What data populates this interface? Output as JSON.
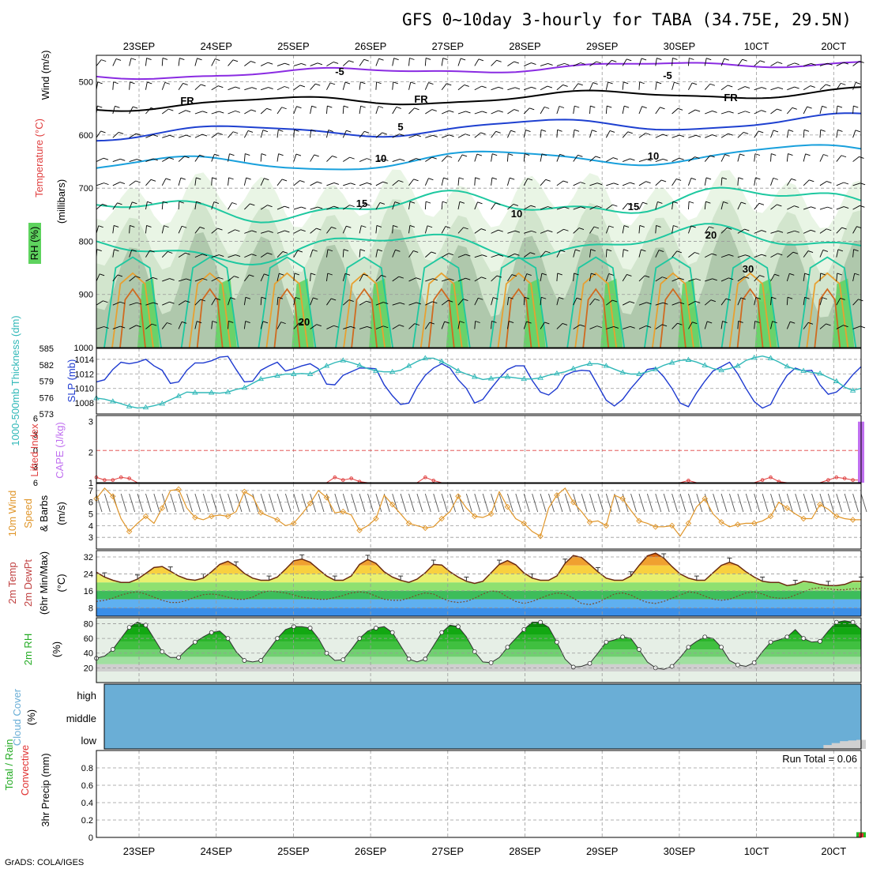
{
  "title": "GFS 0~10day 3-hourly for TABA (34.75E, 29.5N)",
  "credit": "GrADS: COLA/IGES",
  "date_labels": [
    "23SEP",
    "24SEP",
    "25SEP",
    "26SEP",
    "27SEP",
    "28SEP",
    "29SEP",
    "30SEP",
    "1OCT",
    "2OCT"
  ],
  "date_labels_top": [
    "23SEP",
    "24SEP",
    "25SEP",
    "26SEP",
    "27SEP",
    "28SEP",
    "29SEP",
    "30SEP",
    "10CT",
    "20CT"
  ],
  "date_labels_bottom": [
    "23SEP",
    "24SEP",
    "25SEP",
    "26SEP",
    "27SEP",
    "28SEP",
    "29SEP",
    "30SEP",
    "10CT",
    "20CT"
  ],
  "colors": {
    "rh_fill": "#5ed35e",
    "temp_purple": "#8a2be2",
    "temp_blue": "#1e40d0",
    "temp_cyan": "#19a0dc",
    "temp_teal": "#1ec8a0",
    "temp_orange": "#e8a030",
    "slp": "#1e3ad0",
    "thickness": "#30b8b8",
    "li": "#e04040",
    "cape": "#c070f0",
    "wind10": "#e0962a",
    "cloud": "#6aaed6",
    "precip_total": "#22bb22",
    "precip_conv": "#e03030"
  },
  "chart_data": [
    {
      "type": "line",
      "name": "upper-air",
      "ylabel_parts": [
        "Wind (m/s)",
        "Temperature (°C)",
        "RH (%)",
        "(millibars)"
      ],
      "yticks": [
        500,
        600,
        700,
        800,
        900,
        1000
      ],
      "ylim": [
        1000,
        450
      ],
      "contour_labels": [
        "-5",
        "-5",
        "FR",
        "FR",
        "FR",
        "5",
        "10",
        "10",
        "15",
        "15",
        "20",
        "20",
        "10",
        "30"
      ],
      "grid": true
    },
    {
      "type": "line",
      "name": "slp-thickness",
      "ylabel_left": "1000-500mb Thickness (dm)",
      "ylabel_right": "SLP (mb)",
      "left_ticks": [
        573,
        576,
        579,
        582,
        585
      ],
      "right_ticks": [
        1008,
        1010,
        1012,
        1014
      ],
      "left_range": [
        573,
        585
      ],
      "right_range": [
        1006.5,
        1015.5
      ],
      "series": [
        {
          "name": "SLP",
          "axis": "right",
          "values": [
            1010.9,
            1011.2,
            1012.6,
            1013.6,
            1013.4,
            1013.6,
            1014.0,
            1013.1,
            1012.5,
            1010.7,
            1010.9,
            1012.5,
            1013.5,
            1013.5,
            1013.8,
            1014.3,
            1014.4,
            1012.6,
            1010.9,
            1011.0,
            1012.5,
            1013.1,
            1013.6,
            1012.4,
            1012.7,
            1013.1,
            1013.4,
            1012.7,
            1010.6,
            1010.5,
            1011.8,
            1012.3,
            1012.8,
            1012.8,
            1012.7,
            1010.5,
            1009.0,
            1007.8,
            1008.0,
            1010.2,
            1011.8,
            1012.8,
            1013.4,
            1012.8,
            1011.2,
            1010.0,
            1008.0,
            1008.5,
            1010.0,
            1011.4,
            1012.6,
            1013.1,
            1013.1,
            1011.1,
            1009.5,
            1009.1,
            1010.0,
            1011.8,
            1012.3,
            1012.5,
            1012.4,
            1010.4,
            1008.4,
            1007.6,
            1008.5,
            1010.0,
            1011.3,
            1012.6,
            1012.8,
            1011.6,
            1010.0,
            1008.0,
            1007.5,
            1009.4,
            1011.0,
            1012.4,
            1013.0,
            1013.6,
            1012.0,
            1010.0,
            1008.2,
            1007.3,
            1007.8,
            1010.0,
            1011.8,
            1012.8,
            1012.4,
            1012.5,
            1010.5,
            1009.2,
            1009.5,
            1010.5,
            1011.9,
            1013.0
          ]
        },
        {
          "name": "Thickness",
          "axis": "left",
          "values": [
            575.9,
            575.7,
            575.3,
            574.9,
            574.4,
            574.1,
            574.2,
            574.5,
            574.9,
            575.6,
            576.3,
            577.0,
            576.9,
            576.9,
            576.9,
            576.8,
            577.0,
            577.5,
            577.8,
            578.6,
            579.4,
            579.7,
            580.0,
            580.3,
            580.3,
            580.4,
            580.3,
            581.0,
            581.8,
            582.4,
            582.8,
            582.4,
            581.9,
            581.3,
            580.9,
            580.7,
            580.7,
            581.0,
            581.8,
            582.6,
            583.2,
            583.2,
            582.6,
            581.8,
            580.9,
            580.3,
            579.8,
            579.3,
            579.5,
            579.7,
            579.8,
            579.6,
            579.4,
            579.4,
            579.6,
            580.1,
            580.4,
            580.7,
            581.3,
            581.8,
            582.2,
            582.2,
            581.8,
            581.2,
            580.6,
            580.3,
            580.3,
            580.7,
            581.2,
            581.9,
            582.4,
            582.8,
            582.9,
            582.5,
            581.9,
            581.3,
            581.0,
            581.3,
            581.8,
            582.8,
            583.3,
            583.6,
            583.2,
            582.5,
            581.7,
            581.2,
            580.9,
            580.6,
            580.4,
            579.7,
            579.0,
            577.9,
            577.3,
            577.7
          ]
        }
      ],
      "grid": true
    },
    {
      "type": "bar",
      "name": "cape-li",
      "ylabel_left": "Lifted Index",
      "ylabel_right": "CAPE (J/kg)",
      "left_ticks": [
        -6,
        -3,
        0,
        3,
        6
      ],
      "left_tick_labels": [
        "6",
        "3",
        "0",
        "3",
        "6"
      ],
      "right_ticks": [
        1,
        2,
        3
      ],
      "right_range": [
        1,
        3.2
      ],
      "li_range": [
        6,
        -6.5
      ],
      "cape_bar_index": 93,
      "cape_bar_value": 3.0,
      "li_values": [
        5.0,
        5.5,
        5.5,
        5.0,
        5.2,
        6.0,
        6.0,
        6.0,
        6.0,
        6.0,
        6.0,
        6.0,
        6.0,
        6.0,
        6.0,
        6.0,
        6.0,
        6.0,
        6.0,
        6.0,
        6.0,
        6.0,
        6.0,
        6.0,
        6.0,
        6.0,
        6.0,
        6.0,
        6.0,
        5.0,
        5.5,
        5.2,
        5.8,
        6.0,
        6.0,
        6.0,
        6.0,
        6.0,
        6.0,
        6.0,
        5.0,
        5.6,
        6.0,
        6.0,
        6.0,
        6.0,
        6.0,
        6.0,
        6.0,
        6.0,
        6.0,
        6.0,
        6.0,
        6.0,
        6.0,
        6.0,
        6.0,
        6.0,
        6.0,
        6.0,
        6.0,
        6.0,
        6.0,
        6.0,
        6.0,
        6.0,
        6.0,
        6.0,
        6.0,
        6.0,
        6.0,
        6.0,
        5.6,
        6.0,
        6.0,
        6.0,
        6.0,
        6.0,
        6.0,
        6.0,
        6.0,
        5.5,
        5.0,
        5.8,
        6.0,
        6.0,
        6.0,
        6.0,
        6.0,
        5.5,
        5.0,
        5.2,
        5.5,
        5.5
      ],
      "grid": true
    },
    {
      "type": "line",
      "name": "wind10m",
      "ylabel_parts": [
        "10m Wind",
        "Speed",
        "& Barbs",
        "(m/s)"
      ],
      "yticks": [
        3,
        4,
        5,
        6,
        7
      ],
      "ylim": [
        2,
        7.6
      ],
      "series": [
        {
          "name": "10m Wind Speed",
          "values": [
            6.3,
            7.2,
            6.5,
            4.6,
            3.5,
            4.2,
            4.8,
            4.2,
            5.5,
            7.0,
            7.1,
            5.5,
            4.7,
            4.5,
            4.8,
            4.9,
            4.8,
            5.2,
            6.9,
            6.5,
            5.1,
            4.8,
            4.5,
            4.0,
            4.2,
            5.0,
            5.9,
            7.0,
            6.4,
            5.1,
            5.2,
            4.9,
            3.6,
            4.0,
            4.6,
            6.6,
            5.8,
            5.0,
            4.2,
            4.0,
            3.8,
            3.9,
            4.6,
            5.2,
            6.5,
            5.5,
            4.8,
            4.7,
            5.0,
            6.9,
            5.6,
            4.6,
            4.2,
            3.5,
            3.1,
            5.5,
            6.6,
            7.2,
            6.0,
            5.2,
            4.3,
            4.4,
            4.0,
            6.6,
            6.3,
            5.3,
            4.4,
            4.2,
            3.9,
            3.9,
            4.0,
            3.1,
            4.2,
            5.6,
            6.3,
            5.0,
            4.3,
            3.9,
            4.1,
            4.2,
            4.2,
            4.4,
            4.8,
            6.0,
            5.5,
            5.0,
            4.6,
            4.6,
            5.8,
            5.4,
            4.8,
            4.6,
            4.5,
            4.5
          ]
        }
      ],
      "grid": true
    },
    {
      "type": "area",
      "name": "temperature2m",
      "ylabel_parts": [
        "2m Temp",
        "2m DewPt",
        "(6hr Min/Max)",
        "(°C)"
      ],
      "yticks": [
        8,
        16,
        24,
        32
      ],
      "ylim": [
        4,
        35
      ],
      "series": [
        {
          "name": "2m Temp",
          "values": [
            24.8,
            22.5,
            21.0,
            20.0,
            20.0,
            21.5,
            24.2,
            27.0,
            27.5,
            25.3,
            23.0,
            21.5,
            21.0,
            22.0,
            25.0,
            28.5,
            30.0,
            27.7,
            24.2,
            22.0,
            21.0,
            21.0,
            22.5,
            26.2,
            30.2,
            31.0,
            29.5,
            26.2,
            23.0,
            21.0,
            21.0,
            23.0,
            28.5,
            30.8,
            29.0,
            25.0,
            22.5,
            21.0,
            20.0,
            21.5,
            24.5,
            28.5,
            28.2,
            25.0,
            22.5,
            20.5,
            19.5,
            20.5,
            24.5,
            28.5,
            30.3,
            28.3,
            24.5,
            22.0,
            21.0,
            21.0,
            23.0,
            29.0,
            32.7,
            31.8,
            28.5,
            25.0,
            22.0,
            21.0,
            21.0,
            23.0,
            28.0,
            32.5,
            33.8,
            31.5,
            27.5,
            24.0,
            22.0,
            21.0,
            21.0,
            24.5,
            28.0,
            29.5,
            28.0,
            25.0,
            22.5,
            20.5,
            20.0,
            20.0,
            18.5,
            19.0,
            20.5,
            20.0,
            19.0,
            18.5,
            18.5,
            19.0,
            20.5,
            20.5
          ]
        },
        {
          "name": "2m DewPt",
          "values": [
            11.0,
            11.5,
            12.5,
            14.0,
            15.0,
            15.5,
            14.5,
            13.0,
            11.5,
            10.5,
            10.5,
            11.5,
            13.0,
            14.2,
            14.5,
            14.0,
            13.0,
            12.0,
            12.0,
            13.0,
            15.0,
            16.0,
            15.5,
            15.0,
            14.0,
            13.0,
            12.5,
            12.0,
            12.0,
            12.8,
            13.8,
            15.0,
            15.5,
            15.0,
            13.5,
            12.0,
            11.5,
            11.5,
            12.5,
            14.0,
            15.0,
            14.5,
            12.5,
            11.0,
            10.5,
            11.0,
            12.5,
            14.5,
            16.0,
            15.5,
            13.0,
            11.0,
            10.0,
            11.0,
            12.5,
            14.0,
            15.0,
            14.5,
            12.5,
            10.0,
            9.5,
            10.5,
            12.5,
            14.5,
            15.0,
            14.0,
            12.0,
            10.5,
            10.0,
            11.0,
            12.5,
            14.0,
            15.5,
            15.0,
            13.5,
            12.0,
            11.5,
            12.0,
            13.5,
            15.0,
            15.5,
            14.5,
            13.0,
            12.5,
            12.5,
            14.0,
            15.5,
            17.0,
            17.5,
            17.0,
            16.5,
            16.5,
            17.0,
            17.0
          ]
        }
      ],
      "grid": true
    },
    {
      "type": "area",
      "name": "rh2m",
      "ylabel": "2m RH",
      "ylabel_unit": "(%)",
      "yticks": [
        20,
        40,
        60,
        80
      ],
      "ylim": [
        0,
        88
      ],
      "series": [
        {
          "name": "2m RH",
          "values": [
            33,
            36,
            45,
            60,
            75,
            82,
            78,
            60,
            42,
            34,
            34,
            45,
            55,
            62,
            68,
            70,
            60,
            42,
            30,
            28,
            30,
            45,
            60,
            72,
            76,
            76,
            74,
            60,
            40,
            30,
            31,
            45,
            60,
            70,
            74,
            76,
            68,
            50,
            32,
            28,
            32,
            50,
            68,
            78,
            76,
            62,
            42,
            28,
            27,
            34,
            48,
            60,
            72,
            82,
            82,
            75,
            55,
            32,
            21,
            22,
            26,
            40,
            55,
            58,
            62,
            60,
            45,
            28,
            20,
            18,
            22,
            34,
            48,
            56,
            62,
            60,
            48,
            30,
            24,
            22,
            27,
            42,
            55,
            58,
            62,
            72,
            60,
            55,
            56,
            70,
            82,
            84,
            82,
            72
          ]
        }
      ],
      "grid": true
    },
    {
      "type": "area",
      "name": "cloud-cover",
      "ylabel": "Cloud Cover",
      "ylabel_unit": "(%)",
      "level_labels": [
        "high",
        "middle",
        "low"
      ],
      "high_values": [
        100,
        100,
        100,
        100,
        100,
        100,
        100,
        100,
        100,
        100,
        100,
        100,
        100,
        100,
        100,
        100,
        100,
        100,
        100,
        100,
        100,
        100,
        100,
        100,
        100,
        100,
        100,
        100,
        100,
        100,
        100,
        100,
        100,
        100,
        100,
        100,
        100,
        100,
        100,
        100,
        100,
        100,
        100,
        100,
        100,
        100,
        100,
        100,
        100,
        100,
        100,
        100,
        100,
        100,
        100,
        100,
        100,
        100,
        100,
        100,
        100,
        100,
        100,
        100,
        100,
        100,
        100,
        100,
        100,
        100,
        100,
        100,
        100,
        100,
        100,
        100,
        100,
        100,
        100,
        100,
        100,
        100,
        100,
        100,
        100,
        100,
        100,
        100,
        100,
        100,
        100,
        100,
        100,
        100
      ],
      "low_values": [
        0,
        0,
        0,
        0,
        0,
        0,
        0,
        0,
        0,
        0,
        0,
        0,
        0,
        0,
        0,
        0,
        0,
        0,
        0,
        0,
        0,
        0,
        0,
        0,
        0,
        0,
        0,
        0,
        0,
        0,
        0,
        0,
        0,
        0,
        0,
        0,
        0,
        0,
        0,
        0,
        0,
        0,
        0,
        0,
        0,
        0,
        0,
        0,
        0,
        0,
        0,
        0,
        0,
        0,
        0,
        0,
        0,
        0,
        0,
        0,
        0,
        0,
        0,
        0,
        0,
        0,
        0,
        0,
        0,
        0,
        0,
        0,
        0,
        0,
        0,
        0,
        0,
        0,
        0,
        0,
        0,
        0,
        0,
        0,
        0,
        0,
        0,
        0,
        0,
        30,
        45,
        60,
        65,
        70
      ]
    },
    {
      "type": "bar",
      "name": "precip3hr",
      "ylabel_parts": [
        "Total / Rain",
        "Convective",
        "3hr Precip (mm)"
      ],
      "yticks": [
        0,
        0.2,
        0.4,
        0.6,
        0.8
      ],
      "ylim": [
        0,
        1.0
      ],
      "run_total_label": "Run Total = 0.06",
      "bars": [
        {
          "index": 93,
          "total": 0.06,
          "convective": 0.05
        }
      ],
      "grid": true
    }
  ]
}
